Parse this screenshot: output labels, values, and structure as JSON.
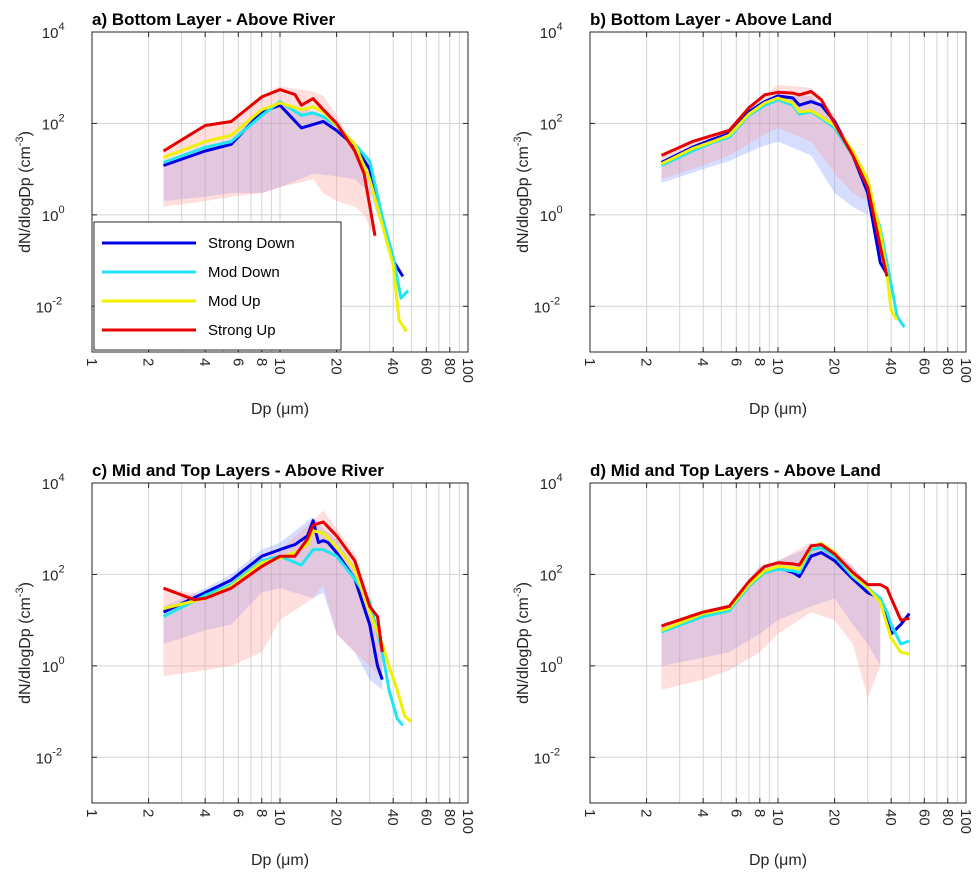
{
  "chart_data": [
    {
      "type": "line",
      "title": "a) Bottom Layer - Above River",
      "xlabel": "Dp (μm)",
      "ylabel": "dN/dlogDp (cm⁻³)",
      "xscale": "log",
      "yscale": "log",
      "xlim": [
        1,
        100
      ],
      "ylim": [
        0.001,
        10000
      ],
      "grid": true,
      "legend": "bottom-left",
      "series": [
        {
          "name": "Strong Down",
          "color": "#0000e6",
          "x": [
            2.4,
            4,
            5.5,
            8,
            10,
            13,
            17,
            20,
            25,
            30,
            35,
            40,
            45
          ],
          "y": [
            12,
            25,
            35,
            180,
            250,
            80,
            110,
            70,
            32,
            10,
            0.8,
            0.1,
            0.045
          ]
        },
        {
          "name": "Mod Down",
          "color": "#1ee6f0",
          "x": [
            2.4,
            4,
            5.5,
            8,
            10,
            13,
            15,
            17,
            20,
            25,
            30,
            35,
            40,
            44,
            48
          ],
          "y": [
            14,
            30,
            40,
            150,
            300,
            150,
            170,
            140,
            90,
            35,
            15,
            0.9,
            0.12,
            0.015,
            0.022
          ]
        },
        {
          "name": "Mod Up",
          "color": "#f0f000",
          "x": [
            2.4,
            4,
            5.5,
            8,
            10,
            13,
            15,
            17,
            20,
            25,
            30,
            35,
            40,
            43,
            47
          ],
          "y": [
            18,
            40,
            55,
            200,
            280,
            200,
            230,
            180,
            90,
            35,
            6,
            0.6,
            0.08,
            0.005,
            0.0028
          ]
        },
        {
          "name": "Strong Up",
          "color": "#e60000",
          "x": [
            2.4,
            4,
            5.5,
            8,
            10,
            12,
            13,
            15,
            17,
            20,
            25,
            28,
            32
          ],
          "y": [
            25,
            90,
            110,
            380,
            550,
            430,
            250,
            350,
            200,
            100,
            25,
            8,
            0.35
          ]
        }
      ],
      "shades": [
        {
          "color": "#7f95ff",
          "x": [
            2.4,
            4,
            5.5,
            8,
            10,
            15,
            20,
            25,
            30,
            35
          ],
          "upper": [
            14,
            30,
            45,
            200,
            300,
            180,
            100,
            40,
            15,
            1
          ],
          "lower": [
            2,
            2.5,
            3,
            3,
            4,
            8,
            7,
            6,
            3,
            0.5
          ]
        },
        {
          "color": "#ff9999",
          "x": [
            2.4,
            4,
            5.5,
            8,
            10,
            15,
            17,
            20,
            25,
            28,
            32
          ],
          "upper": [
            26,
            95,
            115,
            420,
            650,
            500,
            400,
            150,
            30,
            10,
            0.4
          ],
          "lower": [
            1.5,
            2,
            2.5,
            3,
            4,
            6,
            3,
            2,
            1.5,
            1,
            0.3
          ]
        }
      ]
    },
    {
      "type": "line",
      "title": "b) Bottom Layer - Above Land",
      "xlabel": "Dp (μm)",
      "ylabel": "dN/dlogDp (cm⁻³)",
      "xscale": "log",
      "yscale": "log",
      "xlim": [
        1,
        100
      ],
      "ylim": [
        0.001,
        10000
      ],
      "grid": true,
      "series": [
        {
          "name": "Strong Down",
          "color": "#0000e6",
          "x": [
            2.4,
            3.5,
            4.5,
            5.5,
            7,
            8.5,
            10,
            12,
            13,
            15,
            17,
            20,
            25,
            30,
            35,
            38
          ],
          "y": [
            14,
            30,
            45,
            60,
            180,
            300,
            400,
            360,
            250,
            300,
            250,
            110,
            20,
            3,
            0.09,
            0.05
          ]
        },
        {
          "name": "Mod Down",
          "color": "#1ee6f0",
          "x": [
            2.4,
            3.5,
            4.5,
            5.5,
            7,
            8.5,
            10,
            12,
            13,
            15,
            17,
            20,
            25,
            30,
            35,
            40,
            43,
            47
          ],
          "y": [
            12,
            25,
            38,
            50,
            150,
            250,
            330,
            250,
            160,
            180,
            130,
            80,
            20,
            4,
            0.5,
            0.03,
            0.006,
            0.0035
          ]
        },
        {
          "name": "Mod Up",
          "color": "#f0f000",
          "x": [
            2.4,
            3.5,
            4.5,
            5.5,
            7,
            8.5,
            10,
            12,
            13,
            15,
            17,
            20,
            25,
            30,
            35,
            38,
            40,
            43
          ],
          "y": [
            13,
            28,
            40,
            55,
            160,
            280,
            360,
            280,
            180,
            190,
            140,
            90,
            25,
            6,
            0.4,
            0.05,
            0.008,
            0.005
          ]
        },
        {
          "name": "Strong Up",
          "color": "#e60000",
          "x": [
            2.4,
            3.5,
            4.5,
            5.5,
            7,
            8.5,
            10,
            12,
            13,
            15,
            17,
            20,
            25,
            30,
            35,
            38
          ],
          "y": [
            20,
            40,
            55,
            70,
            220,
            420,
            480,
            460,
            420,
            500,
            330,
            100,
            20,
            4,
            0.2,
            0.045
          ]
        }
      ],
      "shades": [
        {
          "color": "#7f95ff",
          "x": [
            2.4,
            4,
            5.5,
            8,
            10,
            15,
            20,
            25,
            30
          ],
          "upper": [
            14,
            40,
            60,
            250,
            400,
            400,
            120,
            25,
            4
          ],
          "lower": [
            5,
            10,
            15,
            30,
            40,
            20,
            3,
            1.5,
            1
          ]
        },
        {
          "color": "#ff9999",
          "x": [
            2.4,
            4,
            5.5,
            8,
            10,
            15,
            20,
            25,
            30
          ],
          "upper": [
            20,
            50,
            70,
            350,
            700,
            600,
            150,
            25,
            5
          ],
          "lower": [
            6,
            12,
            20,
            50,
            80,
            40,
            8,
            3,
            2
          ]
        }
      ]
    },
    {
      "type": "line",
      "title": "c) Mid and Top Layers - Above River",
      "xlabel": "Dp (μm)",
      "ylabel": "dN/dlogDp (cm⁻³)",
      "xscale": "log",
      "yscale": "log",
      "xlim": [
        1,
        100
      ],
      "ylim": [
        0.001,
        10000
      ],
      "grid": true,
      "series": [
        {
          "name": "Strong Down",
          "color": "#0000e6",
          "x": [
            2.4,
            4,
            5.5,
            8,
            10,
            12,
            14,
            15,
            16,
            17,
            18,
            20,
            25,
            30,
            33,
            35
          ],
          "y": [
            15,
            40,
            75,
            250,
            350,
            450,
            700,
            1500,
            500,
            550,
            500,
            300,
            80,
            8,
            1,
            0.5
          ]
        },
        {
          "name": "Mod Down",
          "color": "#1ee6f0",
          "x": [
            2.4,
            4,
            5.5,
            8,
            10,
            13,
            15,
            17,
            20,
            25,
            30,
            35,
            38,
            42,
            45
          ],
          "y": [
            12,
            35,
            60,
            200,
            250,
            160,
            350,
            350,
            250,
            80,
            25,
            2,
            0.3,
            0.07,
            0.05
          ]
        },
        {
          "name": "Mod Up",
          "color": "#f0f000",
          "x": [
            2.4,
            4,
            5.5,
            8,
            10,
            12,
            14,
            15,
            17,
            20,
            25,
            30,
            35,
            38,
            42,
            46,
            50
          ],
          "y": [
            18,
            30,
            55,
            180,
            230,
            300,
            450,
            900,
            800,
            400,
            130,
            15,
            3,
            1,
            0.3,
            0.08,
            0.06
          ]
        },
        {
          "name": "Strong Up",
          "color": "#e60000",
          "x": [
            2.4,
            3.5,
            4,
            5.5,
            8,
            10,
            12,
            14,
            15,
            17,
            20,
            25,
            30,
            33,
            35
          ],
          "y": [
            50,
            28,
            30,
            50,
            150,
            250,
            250,
            600,
            1200,
            1400,
            700,
            200,
            20,
            12,
            2
          ]
        }
      ],
      "shades": [
        {
          "color": "#7f95ff",
          "x": [
            2.4,
            4,
            5.5,
            8,
            10,
            15,
            17,
            20,
            25,
            30,
            35
          ],
          "upper": [
            20,
            50,
            100,
            350,
            500,
            1800,
            1000,
            600,
            150,
            30,
            3
          ],
          "lower": [
            3,
            6,
            8,
            40,
            50,
            30,
            40,
            5,
            2,
            0.5,
            0.3
          ]
        },
        {
          "color": "#ff9999",
          "x": [
            2.4,
            4,
            5.5,
            8,
            10,
            15,
            17,
            20,
            25,
            30,
            35
          ],
          "upper": [
            50,
            35,
            60,
            200,
            350,
            1500,
            2500,
            1000,
            300,
            30,
            3
          ],
          "lower": [
            0.6,
            0.8,
            1,
            2,
            10,
            30,
            60,
            5,
            2,
            1,
            0.5
          ]
        }
      ]
    },
    {
      "type": "line",
      "title": "d) Mid and Top Layers - Above Land",
      "xlabel": "Dp (μm)",
      "ylabel": "dN/dlogDp (cm⁻³)",
      "xscale": "log",
      "yscale": "log",
      "xlim": [
        1,
        100
      ],
      "ylim": [
        0.001,
        10000
      ],
      "grid": true,
      "series": [
        {
          "name": "Strong Down",
          "color": "#0000e6",
          "x": [
            2.4,
            4,
            5.5,
            7,
            8.5,
            10,
            12,
            13,
            15,
            17,
            20,
            25,
            30,
            35,
            38,
            40,
            45,
            50
          ],
          "y": [
            6,
            13,
            18,
            60,
            120,
            140,
            110,
            90,
            250,
            300,
            200,
            80,
            40,
            30,
            10,
            5,
            8,
            14
          ]
        },
        {
          "name": "Mod Down",
          "color": "#1ee6f0",
          "x": [
            2.4,
            4,
            5.5,
            7,
            8.5,
            10,
            12,
            13,
            15,
            17,
            20,
            25,
            30,
            35,
            38,
            40,
            45,
            50
          ],
          "y": [
            5.5,
            12,
            16,
            55,
            110,
            130,
            120,
            110,
            350,
            380,
            250,
            90,
            50,
            30,
            15,
            8,
            3,
            3.5
          ]
        },
        {
          "name": "Mod Up",
          "color": "#f0f000",
          "x": [
            2.4,
            4,
            5.5,
            7,
            8.5,
            10,
            12,
            13,
            15,
            17,
            20,
            25,
            30,
            35,
            38,
            40,
            45,
            50
          ],
          "y": [
            6,
            14,
            18,
            60,
            120,
            150,
            140,
            130,
            400,
            480,
            300,
            100,
            50,
            25,
            8,
            4,
            2,
            1.8
          ]
        },
        {
          "name": "Strong Up",
          "color": "#e60000",
          "x": [
            2.4,
            4,
            5.5,
            7,
            8.5,
            10,
            12,
            13,
            15,
            17,
            20,
            25,
            30,
            35,
            38,
            40,
            45,
            50
          ],
          "y": [
            7.5,
            15,
            20,
            70,
            150,
            180,
            170,
            160,
            420,
            450,
            280,
            110,
            60,
            60,
            50,
            30,
            10,
            11
          ]
        }
      ],
      "shades": [
        {
          "color": "#7f95ff",
          "x": [
            2.4,
            4,
            5.5,
            8,
            10,
            15,
            20,
            25,
            30,
            35
          ],
          "upper": [
            8,
            16,
            22,
            150,
            200,
            400,
            300,
            150,
            60,
            30
          ],
          "lower": [
            1,
            1.5,
            2,
            5,
            10,
            20,
            30,
            8,
            3,
            1
          ]
        },
        {
          "color": "#ff9999",
          "x": [
            2.4,
            4,
            5.5,
            8,
            10,
            15,
            20,
            25,
            30,
            35
          ],
          "upper": [
            8,
            16,
            22,
            150,
            200,
            500,
            350,
            150,
            60,
            30
          ],
          "lower": [
            0.3,
            0.5,
            0.8,
            2,
            5,
            15,
            10,
            3,
            0.2,
            1
          ]
        }
      ]
    }
  ]
}
